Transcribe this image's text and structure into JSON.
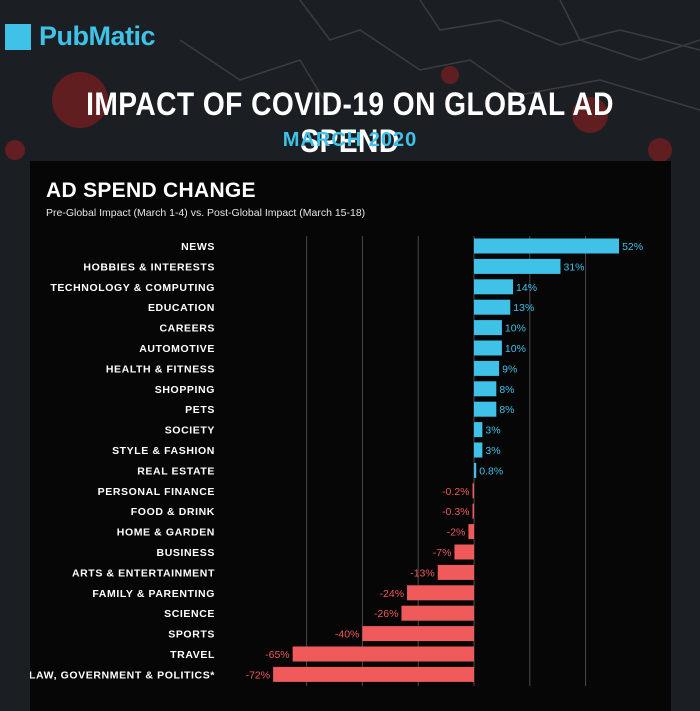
{
  "brand": {
    "name": "PubMatic"
  },
  "header": {
    "title": "IMPACT OF COVID-19 ON GLOBAL AD SPEND",
    "subtitle": "MARCH 2020"
  },
  "colors": {
    "positive": "#3fc1e8",
    "negative": "#f05a5b",
    "accent": "#3fc1e8"
  },
  "chart_data": {
    "type": "bar",
    "orientation": "horizontal",
    "title": "AD SPEND CHANGE",
    "subtitle": "Pre-Global Impact (March 1-4) vs. Post-Global Impact (March 15-18)",
    "xlim": [
      -80,
      60
    ],
    "grid": true,
    "categories": [
      "NEWS",
      "HOBBIES & INTERESTS",
      "TECHNOLOGY & COMPUTING",
      "EDUCATION",
      "CAREERS",
      "AUTOMOTIVE",
      "HEALTH & FITNESS",
      "SHOPPING",
      "PETS",
      "SOCIETY",
      "STYLE & FASHION",
      "REAL ESTATE",
      "PERSONAL FINANCE",
      "FOOD & DRINK",
      "HOME & GARDEN",
      "BUSINESS",
      "ARTS & ENTERTAINMENT",
      "FAMILY & PARENTING",
      "SCIENCE",
      "SPORTS",
      "TRAVEL",
      "LAW, GOVERNMENT & POLITICS*"
    ],
    "values": [
      52,
      31,
      14,
      13,
      10,
      10,
      9,
      8,
      8,
      3,
      3,
      0.8,
      -0.2,
      -0.3,
      -2,
      -7,
      -13,
      -24,
      -26,
      -40,
      -65,
      -72
    ],
    "value_labels": [
      "52%",
      "31%",
      "14%",
      "13%",
      "10%",
      "10%",
      "9%",
      "8%",
      "8%",
      "3%",
      "3%",
      "0.8%",
      "-0.2%",
      "-0.3%",
      "-2%",
      "-7%",
      "-13%",
      "-24%",
      "-26%",
      "-40%",
      "-65%",
      "-72%"
    ]
  }
}
